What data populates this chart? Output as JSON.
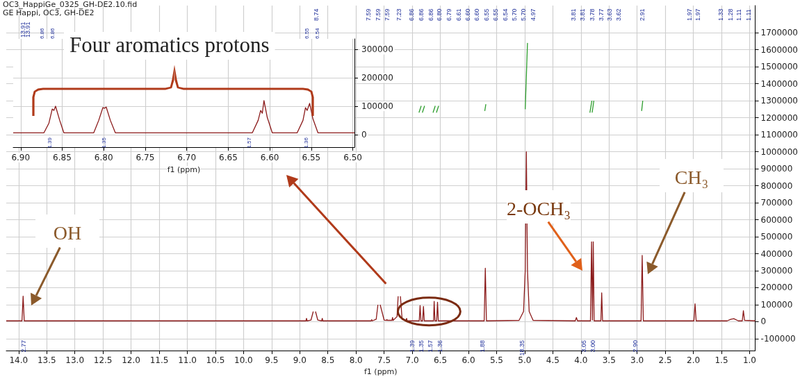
{
  "chart_data": [
    {
      "type": "line",
      "title": "OC3_HappiGe_0325_GH-DE2.10.fid",
      "subtitle": "GE Happi, OC3, GH-DE2",
      "xlabel": "f1 (ppm)",
      "xlim": [
        14.22,
        0.9
      ],
      "xticks": [
        {
          "value": 14,
          "label": "14.0"
        },
        {
          "value": 13.5,
          "label": "13.5"
        },
        {
          "value": 13,
          "label": "13.0"
        },
        {
          "value": 12.5,
          "label": "12.5"
        },
        {
          "value": 12,
          "label": "12.0"
        },
        {
          "value": 11.5,
          "label": "11.5"
        },
        {
          "value": 11,
          "label": "11.0"
        },
        {
          "value": 10.5,
          "label": "10.5"
        },
        {
          "value": 10,
          "label": "10.0"
        },
        {
          "value": 9.5,
          "label": "9.5"
        },
        {
          "value": 9,
          "label": "9.0"
        },
        {
          "value": 8.5,
          "label": "8.5"
        },
        {
          "value": 8,
          "label": "8.0"
        },
        {
          "value": 7.5,
          "label": "7.5"
        },
        {
          "value": 7,
          "label": "7.0"
        },
        {
          "value": 6.5,
          "label": "6.5"
        },
        {
          "value": 6,
          "label": "6.0"
        },
        {
          "value": 5.5,
          "label": "5.5"
        },
        {
          "value": 5,
          "label": "5.0"
        },
        {
          "value": 4.5,
          "label": "4.5"
        },
        {
          "value": 4,
          "label": "4.0"
        },
        {
          "value": 3.5,
          "label": "3.5"
        },
        {
          "value": 3,
          "label": "3.0"
        },
        {
          "value": 2.5,
          "label": "2.5"
        },
        {
          "value": 2,
          "label": "2.0"
        },
        {
          "value": 1.5,
          "label": "1.5"
        },
        {
          "value": 1,
          "label": "1.0"
        }
      ],
      "ylim": [
        -170000,
        1860000
      ],
      "yticks": [
        -100000,
        0,
        100000,
        200000,
        300000,
        400000,
        500000,
        600000,
        700000,
        800000,
        900000,
        1000000,
        1100000,
        1200000,
        1300000,
        1400000,
        1500000,
        1600000,
        1700000
      ],
      "grid": true,
      "series": [
        {
          "color": "#8b1a1a",
          "x": [
            14.22,
            13.94,
            13.92,
            13.9,
            9.0,
            8.89,
            8.88,
            8.87,
            8.8,
            8.76,
            8.74,
            8.72,
            8.68,
            8.61,
            8.6,
            8.59,
            7.73,
            7.72,
            7.71,
            7.64,
            7.61,
            7.59,
            7.57,
            7.5,
            7.46,
            7.45,
            7.44,
            7.36,
            7.35,
            7.34,
            7.27,
            7.25,
            7.23,
            7.21,
            7.18,
            7.11,
            7.1,
            7.09,
            6.875,
            6.86,
            6.845,
            6.815,
            6.8,
            6.785,
            6.62,
            6.61,
            6.595,
            6.565,
            6.55,
            6.535,
            5.72,
            5.7,
            5.68,
            5.1,
            5.02,
            4.99,
            4.97,
            4.95,
            4.92,
            4.85,
            4.1,
            4.08,
            4.06,
            3.83,
            3.81,
            3.795,
            3.78,
            3.765,
            3.645,
            3.63,
            3.615,
            2.93,
            2.91,
            2.89,
            1.99,
            1.97,
            1.95,
            1.4,
            1.33,
            1.28,
            1.2,
            1.13,
            1.11,
            1.09,
            0.9
          ],
          "values": [
            5000,
            5000,
            150000,
            5000,
            5000,
            5000,
            20000,
            5000,
            10000,
            60000,
            null,
            60000,
            10000,
            5000,
            20000,
            5000,
            5000,
            12000,
            5000,
            15000,
            100000,
            null,
            100000,
            10000,
            8000,
            12000,
            8000,
            8000,
            25000,
            8000,
            30000,
            150000,
            null,
            150000,
            15000,
            8000,
            20000,
            5000,
            5000,
            95000,
            5000,
            5000,
            90000,
            5000,
            5000,
            120000,
            5000,
            5000,
            115000,
            5000,
            5000,
            315000,
            5000,
            8000,
            60000,
            300000,
            1000000,
            300000,
            60000,
            8000,
            5000,
            25000,
            5000,
            5000,
            470000,
            10000,
            470000,
            5000,
            5000,
            170000,
            5000,
            5000,
            390000,
            5000,
            5000,
            105000,
            5000,
            5000,
            15000,
            18000,
            5000,
            5000,
            65000,
            8000,
            5000
          ]
        },
        {
          "color": "#2e9e2e",
          "x": [
            6.88,
            6.84
          ],
          "values": [
            1230000,
            1270000
          ]
        },
        {
          "color": "#2e9e2e",
          "x": [
            6.82,
            6.78
          ],
          "values": [
            1230000,
            1270000
          ]
        },
        {
          "color": "#2e9e2e",
          "x": [
            6.63,
            6.59
          ],
          "values": [
            1230000,
            1270000
          ]
        },
        {
          "color": "#2e9e2e",
          "x": [
            6.57,
            6.53
          ],
          "values": [
            1230000,
            1270000
          ]
        },
        {
          "color": "#2e9e2e",
          "x": [
            5.71,
            5.69
          ],
          "values": [
            1240000,
            1280000
          ]
        },
        {
          "color": "#2e9e2e",
          "x": [
            4.99,
            4.95
          ],
          "values": [
            1250000,
            1640000
          ]
        },
        {
          "color": "#2e9e2e",
          "x": [
            3.84,
            3.805
          ],
          "values": [
            1230000,
            1300000
          ]
        },
        {
          "color": "#2e9e2e",
          "x": [
            3.8,
            3.77
          ],
          "values": [
            1230000,
            1300000
          ]
        },
        {
          "color": "#2e9e2e",
          "x": [
            2.92,
            2.9
          ],
          "values": [
            1240000,
            1300000
          ]
        }
      ],
      "annotations": [
        "13.91",
        "13.91",
        "8.74",
        "7.59",
        "7.59",
        "7.59",
        "7.23",
        "6.86",
        "6.86",
        "6.86",
        "6.80",
        "6.79",
        "6.61",
        "6.60",
        "6.60",
        "6.55",
        "6.55",
        "6.54",
        "5.70",
        "5.70",
        "4.97",
        "3.81",
        "3.81",
        "3.78",
        "3.77",
        "3.63",
        "3.62",
        "2.91",
        "1.97",
        "1.97",
        "1.33",
        "1.28",
        "1.11",
        "1.11",
        "2.77",
        "1.39",
        "1.35",
        "1.57",
        "1.36",
        "1.88",
        "18.35",
        "3.05",
        "3.00",
        "2.90",
        "OH",
        "2-OCH₃",
        "CH₃"
      ]
    },
    {
      "type": "line",
      "title": "Four aromatics protons",
      "xlabel": "f1 (ppm)",
      "xlim": [
        6.909,
        6.498
      ],
      "xticks": [
        {
          "value": 6.9,
          "label": "6.90"
        },
        {
          "value": 6.85,
          "label": "6.85"
        },
        {
          "value": 6.8,
          "label": "6.80"
        },
        {
          "value": 6.75,
          "label": "6.75"
        },
        {
          "value": 6.7,
          "label": "6.70"
        },
        {
          "value": 6.65,
          "label": "6.65"
        },
        {
          "value": 6.6,
          "label": "6.60"
        },
        {
          "value": 6.55,
          "label": "6.55"
        },
        {
          "value": 6.5,
          "label": "6.50"
        }
      ],
      "ylim": [
        -45000,
        338000
      ],
      "yticks": [
        0,
        100000,
        200000,
        300000
      ],
      "grid": true,
      "series": [
        {
          "color": "#8b1a1a",
          "x": [
            6.909,
            6.872,
            6.866,
            6.862,
            6.86,
            6.858,
            6.853,
            6.848,
            6.812,
            6.806,
            6.801,
            6.799,
            6.797,
            6.792,
            6.786,
            6.621,
            6.614,
            6.611,
            6.609,
            6.607,
            6.603,
            6.597,
            6.567,
            6.56,
            6.557,
            6.555,
            6.552,
            6.548,
            6.542,
            6.498
          ],
          "values": [
            6000,
            6000,
            40000,
            90000,
            85000,
            100000,
            50000,
            6000,
            6000,
            50000,
            95000,
            93000,
            97000,
            50000,
            6000,
            6000,
            50000,
            85000,
            75000,
            120000,
            60000,
            6000,
            6000,
            50000,
            95000,
            85000,
            110000,
            55000,
            6000,
            6000
          ]
        }
      ],
      "annotations": [
        "6.86",
        "6.86",
        "6.55",
        "6.54",
        "1.39",
        "1.35",
        "1.57",
        "1.36"
      ]
    }
  ]
}
